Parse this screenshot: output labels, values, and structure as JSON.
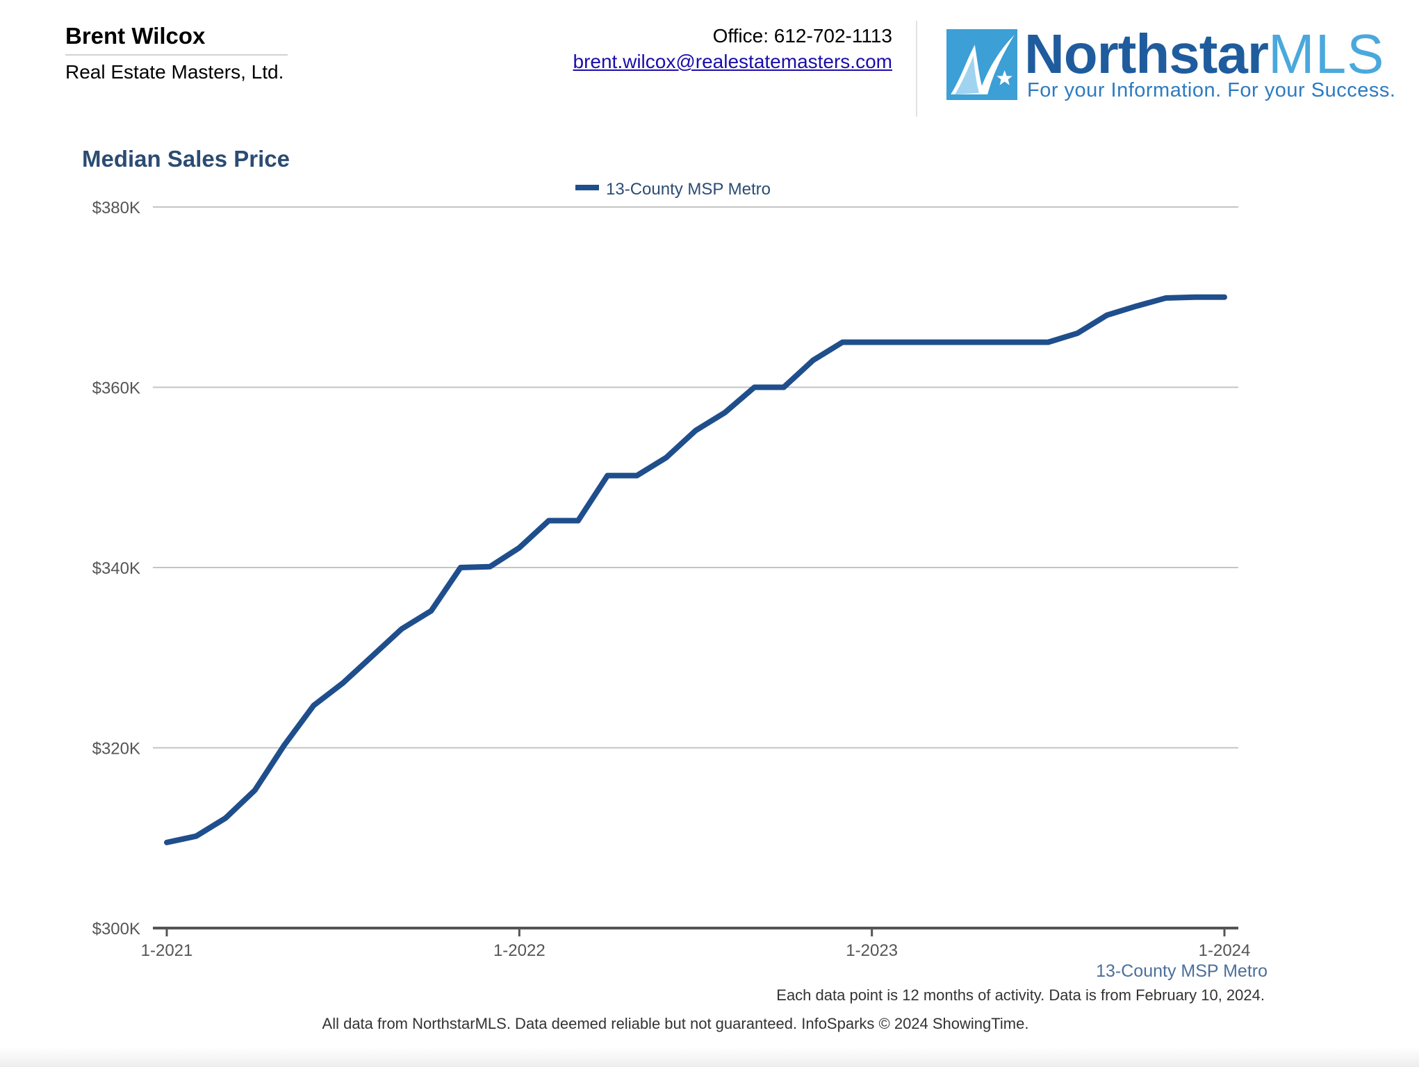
{
  "agent": {
    "name": "Brent Wilcox",
    "company": "Real Estate Masters, Ltd."
  },
  "contact": {
    "office": "Office: 612-702-1113",
    "email": "brent.wilcox@realestatemasters.com"
  },
  "logo": {
    "word_main": "Northstar",
    "word_accent": "MLS",
    "tagline": "For your Information. For your Success.",
    "colors": {
      "primary": "#1f5c9e",
      "accent": "#4aa8dc"
    }
  },
  "chart_data": {
    "type": "line",
    "title": "Median Sales Price",
    "xlabel": "",
    "ylabel": "",
    "ylim": [
      300000,
      380000
    ],
    "y_ticks": [
      300000,
      320000,
      340000,
      360000,
      380000
    ],
    "y_tick_labels": [
      "$300K",
      "$320K",
      "$340K",
      "$360K",
      "$380K"
    ],
    "x_tick_labels": [
      "1-2021",
      "1-2022",
      "1-2023",
      "1-2024"
    ],
    "x": [
      "1-2021",
      "2-2021",
      "3-2021",
      "4-2021",
      "5-2021",
      "6-2021",
      "7-2021",
      "8-2021",
      "9-2021",
      "10-2021",
      "11-2021",
      "12-2021",
      "1-2022",
      "2-2022",
      "3-2022",
      "4-2022",
      "5-2022",
      "6-2022",
      "7-2022",
      "8-2022",
      "9-2022",
      "10-2022",
      "11-2022",
      "12-2022",
      "1-2023",
      "2-2023",
      "3-2023",
      "4-2023",
      "5-2023",
      "6-2023",
      "7-2023",
      "8-2023",
      "9-2023",
      "10-2023",
      "11-2023",
      "12-2023",
      "1-2024"
    ],
    "grid": true,
    "legend": "top-center",
    "series": [
      {
        "name": "13-County MSP Metro",
        "color": "#1f4e8c",
        "values": [
          309500,
          310200,
          312200,
          315300,
          320300,
          324700,
          327200,
          330200,
          333200,
          335200,
          340000,
          340100,
          342200,
          345200,
          345200,
          350200,
          350200,
          352200,
          355200,
          357200,
          360000,
          360000,
          363000,
          365000,
          365000,
          365000,
          365000,
          365000,
          365000,
          365000,
          365000,
          366000,
          368000,
          369000,
          369900,
          370000,
          370000
        ]
      }
    ],
    "series_label": "13-County MSP Metro"
  },
  "notes": {
    "data_note": "Each data point is 12 months of activity. Data is from February 10, 2024.",
    "footer": "All data from NorthstarMLS. Data deemed reliable but not guaranteed. InfoSparks © 2024 ShowingTime."
  }
}
